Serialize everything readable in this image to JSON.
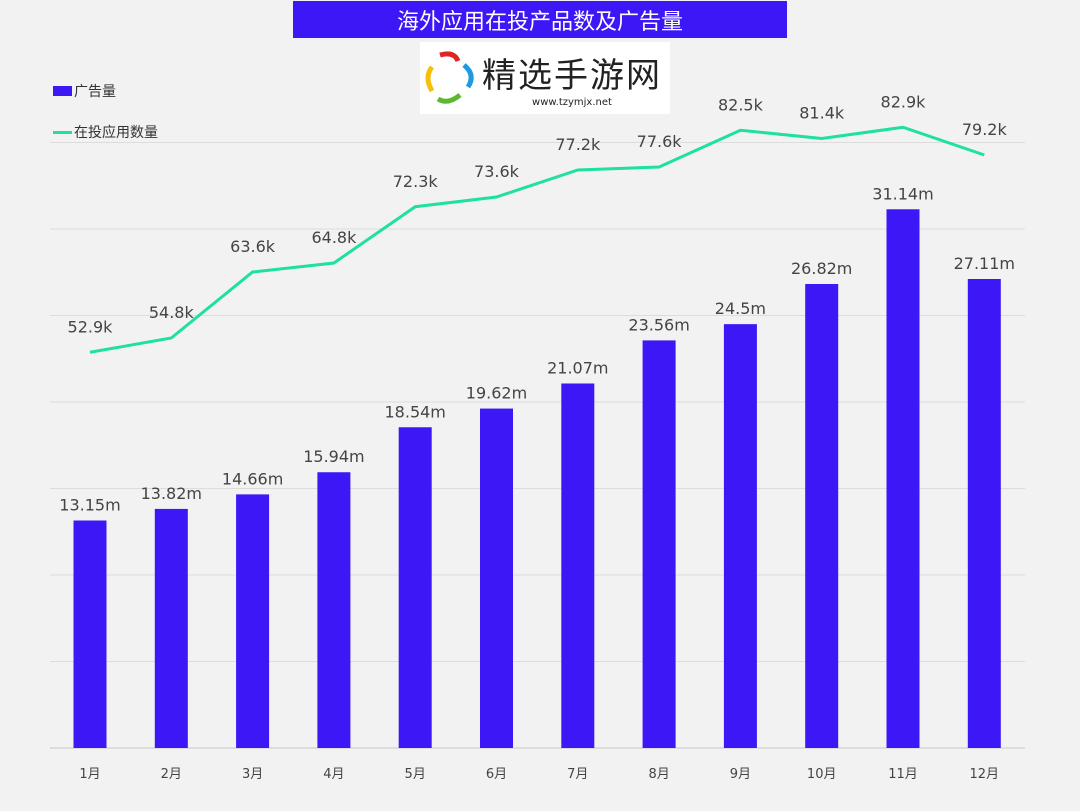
{
  "chart_data": {
    "type": "bar+line",
    "title": "海外应用在投产品数及广告量",
    "categories": [
      "1月",
      "2月",
      "3月",
      "4月",
      "5月",
      "6月",
      "7月",
      "8月",
      "9月",
      "10月",
      "11月",
      "12月"
    ],
    "series": [
      {
        "name": "广告量",
        "type": "bar",
        "color": "#3d17f5",
        "values": [
          13.15,
          13.82,
          14.66,
          15.94,
          18.54,
          19.62,
          21.07,
          23.56,
          24.5,
          26.82,
          31.14,
          27.11
        ],
        "labels": [
          "13.15m",
          "13.82m",
          "14.66m",
          "15.94m",
          "18.54m",
          "19.62m",
          "21.07m",
          "23.56m",
          "24.5m",
          "26.82m",
          "31.14m",
          "27.11m"
        ]
      },
      {
        "name": "在投应用数量",
        "type": "line",
        "color": "#1ee0a0",
        "values": [
          52.9,
          54.8,
          63.6,
          64.8,
          72.3,
          73.6,
          77.2,
          77.6,
          82.5,
          81.4,
          82.9,
          79.2
        ],
        "labels": [
          "52.9k",
          "54.8k",
          "63.6k",
          "64.8k",
          "72.3k",
          "73.6k",
          "77.2k",
          "77.6k",
          "82.5k",
          "81.4k",
          "82.9k",
          "79.2k"
        ]
      }
    ],
    "ylim": [
      0,
      40
    ],
    "grid": true,
    "legend": "top-left"
  },
  "watermark": {
    "name": "精选手游网",
    "url": "www.tzymjx.net"
  }
}
